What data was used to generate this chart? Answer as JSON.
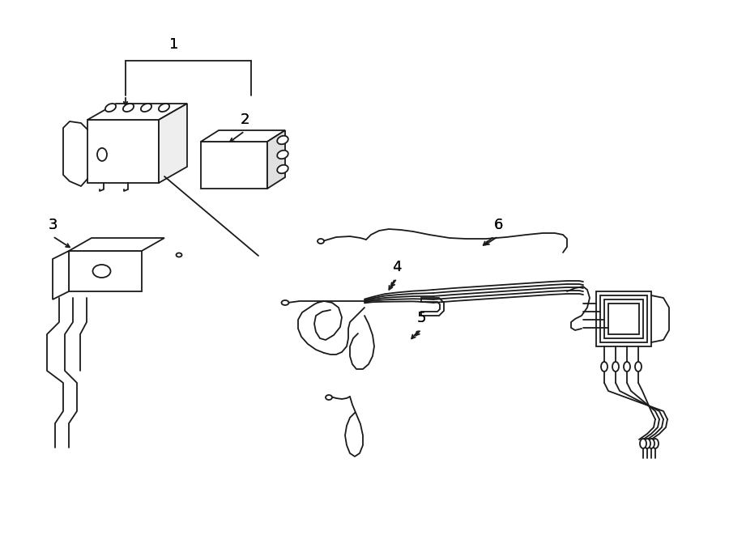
{
  "background_color": "#ffffff",
  "line_color": "#1a1a1a",
  "text_color": "#000000",
  "fig_width": 9.0,
  "fig_height": 6.61,
  "dpi": 100,
  "lw": 1.3
}
